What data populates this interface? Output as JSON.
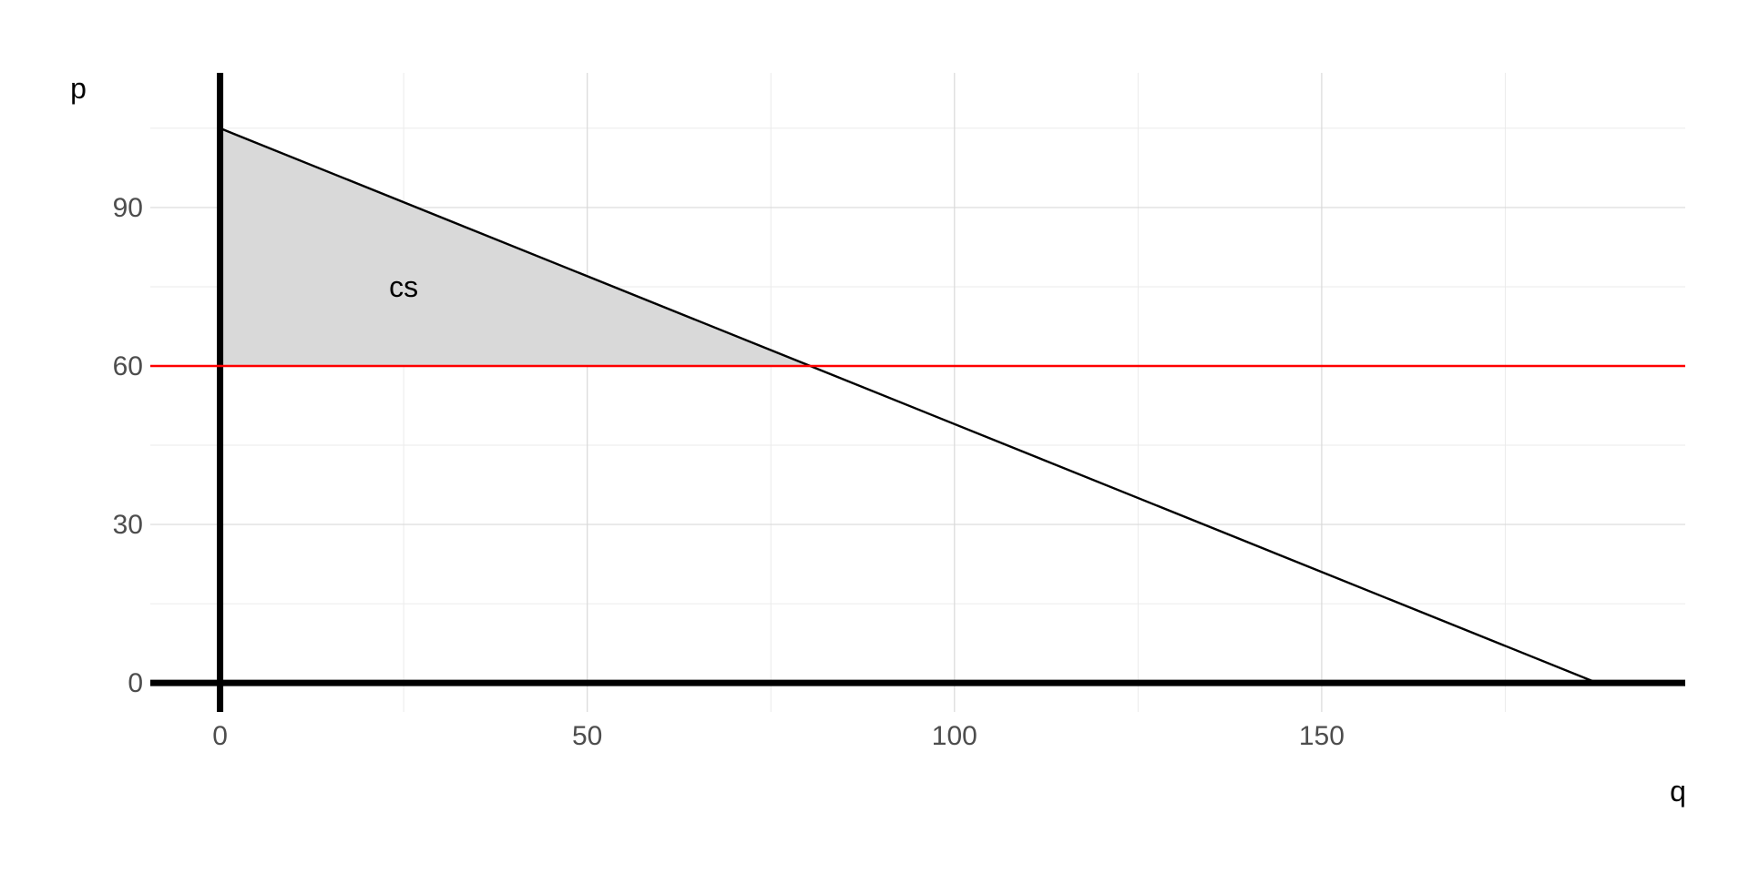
{
  "chart_data": {
    "type": "line",
    "xlabel": "q",
    "ylabel": "p",
    "xlim": [
      -9.5,
      199.5
    ],
    "ylim": [
      -5.5,
      115.5
    ],
    "x_ticks": [
      0,
      50,
      100,
      150
    ],
    "y_ticks": [
      0,
      30,
      60,
      90
    ],
    "x_minor": [
      25,
      75,
      125,
      175
    ],
    "y_minor": [
      15,
      45,
      75,
      105
    ],
    "grid": true,
    "series": [
      {
        "kind": "demand",
        "color": "#000000",
        "x": [
          0,
          187.5
        ],
        "y": [
          105,
          0
        ]
      },
      {
        "kind": "price",
        "color": "#ff0000",
        "x": [
          -9.5,
          199.5
        ],
        "y": [
          60,
          60
        ]
      }
    ],
    "shaded_region": {
      "fill": "#d9d9d9",
      "points": [
        [
          0,
          105
        ],
        [
          80.4,
          60
        ],
        [
          0,
          60
        ]
      ]
    },
    "annotations": [
      {
        "text": "cs",
        "x": 25,
        "y": 75
      }
    ]
  }
}
